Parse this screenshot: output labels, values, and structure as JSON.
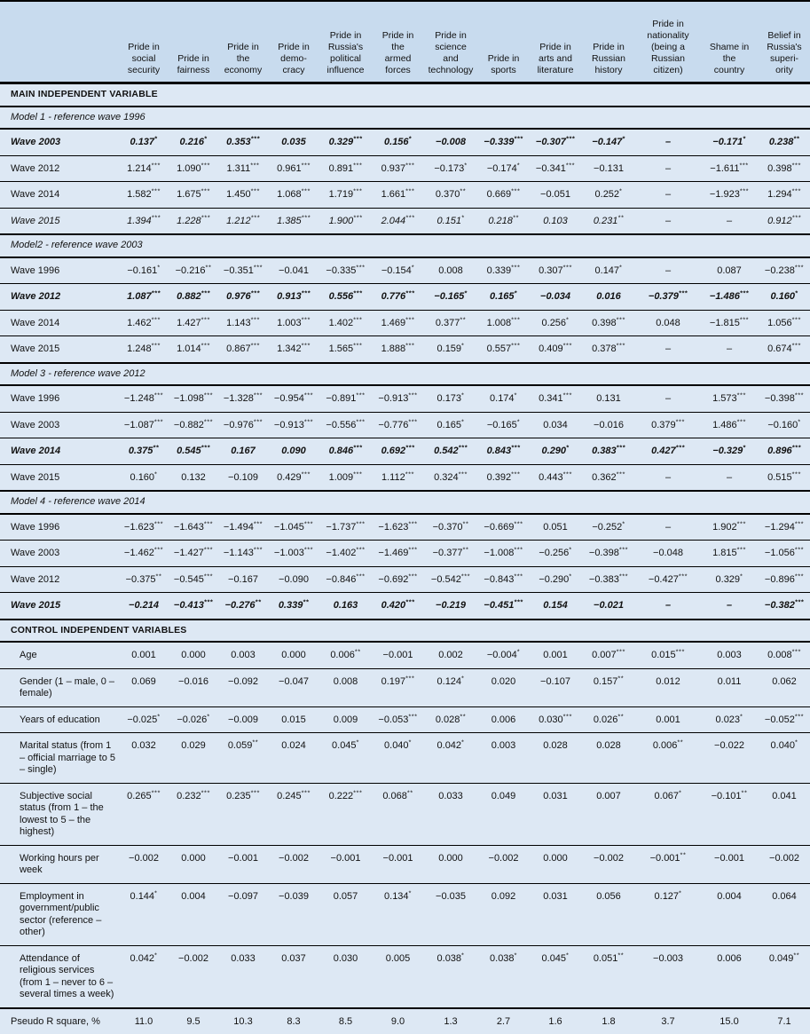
{
  "table": {
    "columns": [
      "Pride in\nsocial\nsecurity",
      "Pride in\nfairness",
      "Pride in\nthe\neconomy",
      "Pride in\ndemo-\ncracy",
      "Pride in\nRussia's\npolitical\ninfluence",
      "Pride in\nthe\narmed\nforces",
      "Pride in\nscience\nand\ntechnology",
      "Pride in\nsports",
      "Pride in\narts and\nliterature",
      "Pride in\nRussian\nhistory",
      "Pride in\nnationality\n(being a\nRussian\ncitizen)",
      "Shame in\nthe\ncountry",
      "Belief in\nRussia's\nsuperi-\nority"
    ],
    "sections": [
      {
        "title": "MAIN INDEPENDENT VARIABLE",
        "groups": [
          {
            "subtitle": "Model 1 - reference wave 1996",
            "rows": [
              {
                "label": "Wave 2003",
                "style": "bold",
                "values": [
                  "0.137*",
                  "0.216*",
                  "0.353***",
                  "0.035",
                  "0.329***",
                  "0.156*",
                  "−0.008",
                  "−0.339***",
                  "−0.307***",
                  "−0.147*",
                  "–",
                  "−0.171*",
                  "0.238**"
                ]
              },
              {
                "label": "Wave 2012",
                "style": "normal",
                "values": [
                  "1.214***",
                  "1.090***",
                  "1.311***",
                  "0.961***",
                  "0.891***",
                  "0.937***",
                  "−0.173*",
                  "−0.174*",
                  "−0.341***",
                  "−0.131",
                  "–",
                  "−1.611***",
                  "0.398***"
                ]
              },
              {
                "label": "Wave 2014",
                "style": "normal",
                "values": [
                  "1.582***",
                  "1.675***",
                  "1.450***",
                  "1.068***",
                  "1.719***",
                  "1.661***",
                  "0.370**",
                  "0.669***",
                  "−0.051",
                  "0.252*",
                  "–",
                  "−1.923***",
                  "1.294***"
                ]
              },
              {
                "label": "Wave 2015",
                "style": "italic",
                "values": [
                  "1.394***",
                  "1.228***",
                  "1.212***",
                  "1.385***",
                  "1.900***",
                  "2.044***",
                  "0.151*",
                  "0.218**",
                  "0.103",
                  "0.231**",
                  "–",
                  "–",
                  "0.912***"
                ]
              }
            ]
          },
          {
            "subtitle": "Model2 - reference wave 2003",
            "rows": [
              {
                "label": "Wave 1996",
                "style": "normal",
                "values": [
                  "−0.161*",
                  "−0.216**",
                  "−0.351***",
                  "−0.041",
                  "−0.335***",
                  "−0.154*",
                  "0.008",
                  "0.339***",
                  "0.307***",
                  "0.147*",
                  "–",
                  "0.087",
                  "−0.238***"
                ]
              },
              {
                "label": "Wave 2012",
                "style": "bold",
                "values": [
                  "1.087***",
                  "0.882***",
                  "0.976***",
                  "0.913***",
                  "0.556***",
                  "0.776***",
                  "−0.165*",
                  "0.165*",
                  "−0.034",
                  "0.016",
                  "−0.379***",
                  "−1.486***",
                  "0.160*"
                ]
              },
              {
                "label": "Wave 2014",
                "style": "normal",
                "values": [
                  "1.462***",
                  "1.427***",
                  "1.143***",
                  "1.003***",
                  "1.402***",
                  "1.469***",
                  "0.377**",
                  "1.008***",
                  "0.256*",
                  "0.398***",
                  "0.048",
                  "−1.815***",
                  "1.056***"
                ]
              },
              {
                "label": "Wave 2015",
                "style": "normal",
                "values": [
                  "1.248***",
                  "1.014***",
                  "0.867***",
                  "1.342***",
                  "1.565***",
                  "1.888***",
                  "0.159*",
                  "0.557***",
                  "0.409***",
                  "0.378***",
                  "–",
                  "–",
                  "0.674***"
                ]
              }
            ]
          },
          {
            "subtitle": "Model 3 - reference wave 2012",
            "rows": [
              {
                "label": "Wave 1996",
                "style": "normal",
                "values": [
                  "−1.248***",
                  "−1.098***",
                  "−1.328***",
                  "−0.954***",
                  "−0.891***",
                  "−0.913***",
                  "0.173*",
                  "0.174*",
                  "0.341***",
                  "0.131",
                  "–",
                  "1.573***",
                  "−0.398***"
                ]
              },
              {
                "label": "Wave 2003",
                "style": "normal",
                "values": [
                  "−1.087***",
                  "−0.882***",
                  "−0.976***",
                  "−0.913***",
                  "−0.556***",
                  "−0.776***",
                  "0.165*",
                  "−0.165*",
                  "0.034",
                  "−0.016",
                  "0.379***",
                  "1.486***",
                  "−0.160*"
                ]
              },
              {
                "label": "Wave 2014",
                "style": "bold",
                "values": [
                  "0.375**",
                  "0.545***",
                  "0.167",
                  "0.090",
                  "0.846***",
                  "0.692***",
                  "0.542***",
                  "0.843***",
                  "0.290*",
                  "0.383***",
                  "0.427***",
                  "−0.329*",
                  "0.896***"
                ]
              },
              {
                "label": "Wave 2015",
                "style": "normal",
                "values": [
                  "0.160*",
                  "0.132",
                  "−0.109",
                  "0.429***",
                  "1.009***",
                  "1.112***",
                  "0.324***",
                  "0.392***",
                  "0.443***",
                  "0.362***",
                  "–",
                  "–",
                  "0.515***"
                ]
              }
            ]
          },
          {
            "subtitle": "Model 4 - reference wave 2014",
            "rows": [
              {
                "label": "Wave 1996",
                "style": "normal",
                "values": [
                  "−1.623***",
                  "−1.643***",
                  "−1.494***",
                  "−1.045***",
                  "−1.737***",
                  "−1.623***",
                  "−0.370**",
                  "−0.669***",
                  "0.051",
                  "−0.252*",
                  "–",
                  "1.902***",
                  "−1.294***"
                ]
              },
              {
                "label": "Wave 2003",
                "style": "normal",
                "values": [
                  "−1.462***",
                  "−1.427***",
                  "−1.143***",
                  "−1.003***",
                  "−1.402***",
                  "−1.469***",
                  "−0.377**",
                  "−1.008***",
                  "−0.256*",
                  "−0.398***",
                  "−0.048",
                  "1.815***",
                  "−1.056***"
                ]
              },
              {
                "label": "Wave 2012",
                "style": "normal",
                "values": [
                  "−0.375**",
                  "−0.545***",
                  "−0.167",
                  "−0.090",
                  "−0.846***",
                  "−0.692***",
                  "−0.542***",
                  "−0.843***",
                  "−0.290*",
                  "−0.383***",
                  "−0.427***",
                  "0.329*",
                  "−0.896***"
                ]
              },
              {
                "label": "Wave 2015",
                "style": "bold",
                "values": [
                  "−0.214",
                  "−0.413***",
                  "−0.276**",
                  "0.339**",
                  "0.163",
                  "0.420***",
                  "−0.219",
                  "−0.451***",
                  "0.154",
                  "−0.021",
                  "–",
                  "–",
                  "−0.382***"
                ]
              }
            ]
          }
        ]
      },
      {
        "title": "CONTROL INDEPENDENT VARIABLES",
        "groups": [
          {
            "subtitle": null,
            "control": true,
            "rows": [
              {
                "label": "Age",
                "style": "normal",
                "values": [
                  "0.001",
                  "0.000",
                  "0.003",
                  "0.000",
                  "0.006**",
                  "−0.001",
                  "0.002",
                  "−0.004*",
                  "0.001",
                  "0.007***",
                  "0.015***",
                  "0.003",
                  "0.008***"
                ]
              },
              {
                "label": "Gender (1 – male, 0 – female)",
                "style": "normal",
                "values": [
                  "0.069",
                  "−0.016",
                  "−0.092",
                  "−0.047",
                  "0.008",
                  "0.197***",
                  "0.124*",
                  "0.020",
                  "−0.107",
                  "0.157**",
                  "0.012",
                  "0.011",
                  "0.062"
                ]
              },
              {
                "label": "Years of education",
                "style": "normal",
                "values": [
                  "−0.025*",
                  "−0.026*",
                  "−0.009",
                  "0.015",
                  "0.009",
                  "−0.053***",
                  "0.028**",
                  "0.006",
                  "0.030***",
                  "0.026**",
                  "0.001",
                  "0.023*",
                  "−0.052***"
                ]
              },
              {
                "label": "Marital status (from 1 – official marriage to 5 – single)",
                "style": "normal",
                "values": [
                  "0.032",
                  "0.029",
                  "0.059**",
                  "0.024",
                  "0.045*",
                  "0.040*",
                  "0.042*",
                  "0.003",
                  "0.028",
                  "0.028",
                  "0.006**",
                  "−0.022",
                  "0.040*"
                ]
              },
              {
                "label": "Subjective social status (from 1 – the lowest to 5 – the highest)",
                "style": "normal",
                "values": [
                  "0.265***",
                  "0.232***",
                  "0.235***",
                  "0.245***",
                  "0.222***",
                  "0.068**",
                  "0.033",
                  "0.049",
                  "0.031",
                  "0.007",
                  "0.067*",
                  "−0.101**",
                  "0.041"
                ]
              },
              {
                "label": "Working hours per week",
                "style": "normal",
                "values": [
                  "−0.002",
                  "0.000",
                  "−0.001",
                  "−0.002",
                  "−0.001",
                  "−0.001",
                  "0.000",
                  "−0.002",
                  "0.000",
                  "−0.002",
                  "−0.001**",
                  "−0.001",
                  "−0.002"
                ]
              },
              {
                "label": "Employment in government/public sector (reference – other)",
                "style": "normal",
                "values": [
                  "0.144*",
                  "0.004",
                  "−0.097",
                  "−0.039",
                  "0.057",
                  "0.134*",
                  "−0.035",
                  "0.092",
                  "0.031",
                  "0.056",
                  "0.127*",
                  "0.004",
                  "0.064"
                ]
              },
              {
                "label": "Attendance of religious services (from 1 – never to 6 – several times a week)",
                "style": "normal",
                "values": [
                  "0.042*",
                  "−0.002",
                  "0.033",
                  "0.037",
                  "0.030",
                  "0.005",
                  "0.038*",
                  "0.038*",
                  "0.045*",
                  "0.051**",
                  "−0.003",
                  "0.006",
                  "0.049**"
                ]
              }
            ]
          },
          {
            "subtitle": null,
            "control": false,
            "rows": [
              {
                "label": "Pseudo R square, %",
                "style": "footer",
                "values": [
                  "11.0",
                  "9.5",
                  "10.3",
                  "8.3",
                  "8.5",
                  "9.0",
                  "1.3",
                  "2.7",
                  "1.6",
                  "1.8",
                  "3.7",
                  "15.0",
                  "7.1"
                ]
              }
            ]
          }
        ]
      }
    ]
  }
}
